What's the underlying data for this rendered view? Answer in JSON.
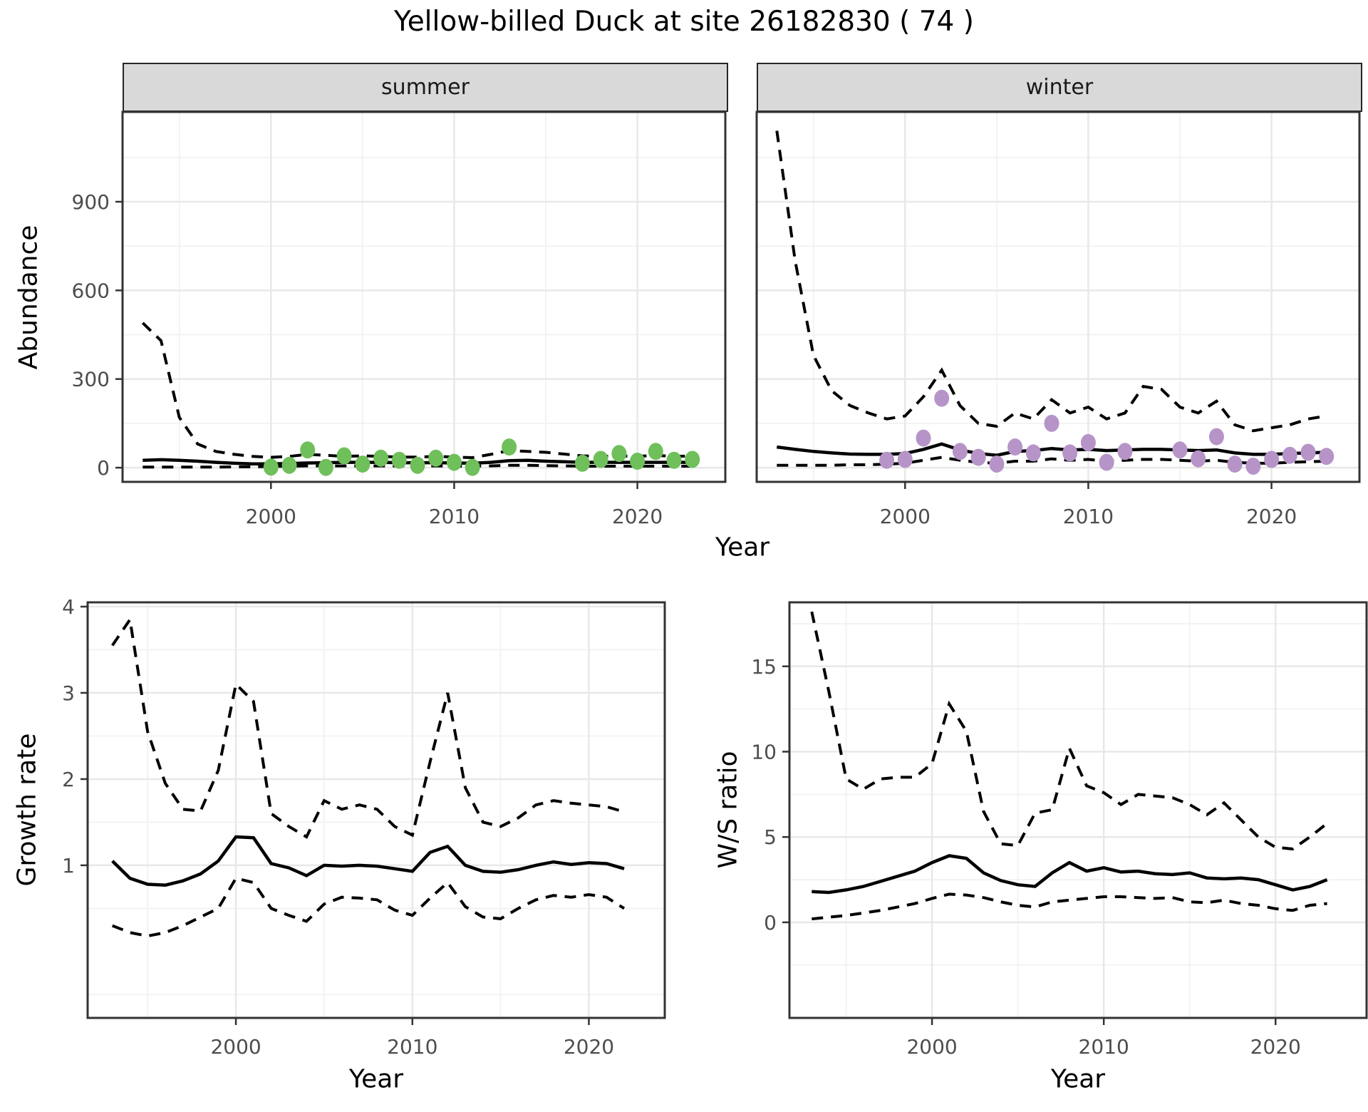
{
  "title": "Yellow-billed Duck at site 26182830 ( 74 )",
  "labels": {
    "abundance": "Abundance",
    "growth_rate": "Growth rate",
    "ws_ratio": "W/S ratio",
    "year": "Year"
  },
  "facets": [
    {
      "label": "summer"
    },
    {
      "label": "winter"
    }
  ],
  "colors": {
    "summer_point": "#6fbf5a",
    "winter_point": "#b694c8",
    "line": "#000000",
    "strip_bg": "#d9d9d9",
    "grid_major": "#e8e8e8",
    "grid_minor": "#f3f3f3",
    "axis_text": "#4d4d4d",
    "panel_border": "#333333"
  },
  "chart_data": [
    {
      "id": "abundance_summer",
      "type": "line",
      "title": "summer facet: modelled abundance with dashed 95% CI and observed counts",
      "xlabel": "Year",
      "ylabel": "Abundance",
      "xlim": [
        1991.9,
        2024.8
      ],
      "ylim": [
        -48,
        1204
      ],
      "xticks": [
        2000,
        2010,
        2020
      ],
      "xminor": [
        1995,
        2005,
        2015
      ],
      "yticks": [
        0,
        300,
        600,
        900
      ],
      "yminor": [
        150,
        450,
        750,
        1050
      ],
      "x": [
        1993,
        1994,
        1995,
        1996,
        1997,
        1998,
        1999,
        2000,
        2001,
        2002,
        2003,
        2004,
        2005,
        2006,
        2007,
        2008,
        2009,
        2010,
        2011,
        2012,
        2013,
        2014,
        2015,
        2016,
        2017,
        2018,
        2019,
        2020,
        2021,
        2022,
        2023
      ],
      "series": [
        {
          "name": "mean",
          "style": "solid",
          "values": [
            25,
            27,
            25,
            22,
            18,
            15,
            13,
            13,
            14,
            16,
            17,
            18,
            18,
            18,
            17,
            17,
            17,
            16,
            15,
            18,
            24,
            25,
            22,
            20,
            18,
            18,
            18,
            18,
            18,
            18,
            18
          ]
        },
        {
          "name": "upper95",
          "style": "dashed",
          "values": [
            490,
            430,
            170,
            80,
            55,
            45,
            38,
            35,
            38,
            45,
            42,
            38,
            40,
            38,
            36,
            36,
            38,
            36,
            34,
            45,
            58,
            55,
            52,
            46,
            40,
            38,
            40,
            38,
            42,
            38,
            40
          ]
        },
        {
          "name": "lower95",
          "style": "dashed",
          "values": [
            2,
            2,
            2,
            2,
            2,
            3,
            3,
            4,
            5,
            6,
            6,
            6,
            6,
            6,
            6,
            6,
            6,
            5,
            5,
            6,
            8,
            8,
            7,
            6,
            5,
            5,
            5,
            5,
            5,
            5,
            5
          ]
        }
      ],
      "points": {
        "color_key": "summer_point",
        "x": [
          2000,
          2001,
          2002,
          2003,
          2004,
          2005,
          2006,
          2007,
          2008,
          2009,
          2010,
          2011,
          2013,
          2017,
          2018,
          2019,
          2020,
          2021,
          2022,
          2023
        ],
        "y": [
          2,
          8,
          60,
          1,
          40,
          12,
          32,
          25,
          8,
          32,
          18,
          1,
          70,
          15,
          28,
          48,
          22,
          55,
          25,
          28
        ]
      }
    },
    {
      "id": "abundance_winter",
      "type": "line",
      "title": "winter facet: modelled abundance with dashed 95% CI and observed counts",
      "xlabel": "Year",
      "ylabel": "Abundance",
      "xlim": [
        1991.9,
        2024.8
      ],
      "ylim": [
        -48,
        1204
      ],
      "xticks": [
        2000,
        2010,
        2020
      ],
      "xminor": [
        1995,
        2005,
        2015
      ],
      "yticks": [
        0,
        300,
        600,
        900
      ],
      "yminor": [
        150,
        450,
        750,
        1050
      ],
      "x": [
        1993,
        1994,
        1995,
        1996,
        1997,
        1998,
        1999,
        2000,
        2001,
        2002,
        2003,
        2004,
        2005,
        2006,
        2007,
        2008,
        2009,
        2010,
        2011,
        2012,
        2013,
        2014,
        2015,
        2016,
        2017,
        2018,
        2019,
        2020,
        2021,
        2022,
        2023
      ],
      "series": [
        {
          "name": "mean",
          "style": "solid",
          "values": [
            70,
            62,
            55,
            50,
            46,
            45,
            45,
            48,
            62,
            80,
            60,
            48,
            42,
            55,
            58,
            65,
            60,
            62,
            58,
            60,
            62,
            62,
            60,
            58,
            60,
            50,
            45,
            45,
            48,
            50,
            52
          ]
        },
        {
          "name": "upper95",
          "style": "dashed",
          "values": [
            1140,
            700,
            380,
            260,
            210,
            185,
            165,
            175,
            240,
            330,
            210,
            150,
            140,
            185,
            165,
            230,
            185,
            205,
            165,
            185,
            275,
            265,
            205,
            185,
            225,
            145,
            125,
            135,
            145,
            165,
            175
          ]
        },
        {
          "name": "lower95",
          "style": "dashed",
          "values": [
            8,
            8,
            8,
            8,
            10,
            10,
            12,
            15,
            25,
            35,
            25,
            18,
            15,
            22,
            22,
            30,
            25,
            28,
            22,
            25,
            28,
            28,
            25,
            22,
            25,
            18,
            15,
            15,
            18,
            20,
            22
          ]
        }
      ],
      "points": {
        "color_key": "winter_point",
        "x": [
          1999,
          2000,
          2001,
          2002,
          2003,
          2004,
          2005,
          2006,
          2007,
          2008,
          2009,
          2010,
          2011,
          2012,
          2015,
          2016,
          2017,
          2018,
          2019,
          2020,
          2021,
          2022,
          2023
        ],
        "y": [
          25,
          28,
          100,
          235,
          55,
          35,
          12,
          70,
          50,
          150,
          50,
          85,
          18,
          55,
          60,
          30,
          105,
          12,
          5,
          28,
          42,
          52,
          38
        ]
      }
    },
    {
      "id": "growth",
      "type": "line",
      "title": "Growth rate with dashed 95% CI",
      "xlabel": "Year",
      "ylabel": "Growth rate",
      "xlim": [
        1991.6,
        2024.3
      ],
      "ylim": [
        -0.77,
        4.05
      ],
      "xticks": [
        2000,
        2010,
        2020
      ],
      "xminor": [
        1995,
        2005,
        2015
      ],
      "yticks": [
        1,
        2,
        3,
        4
      ],
      "yminor": [
        -0.5,
        0.5,
        1.5,
        2.5,
        3.5
      ],
      "x": [
        1993,
        1994,
        1995,
        1996,
        1997,
        1998,
        1999,
        2000,
        2001,
        2002,
        2003,
        2004,
        2005,
        2006,
        2007,
        2008,
        2009,
        2010,
        2011,
        2012,
        2013,
        2014,
        2015,
        2016,
        2017,
        2018,
        2019,
        2020,
        2021,
        2022
      ],
      "series": [
        {
          "name": "mean",
          "style": "solid",
          "values": [
            1.05,
            0.85,
            0.78,
            0.77,
            0.82,
            0.9,
            1.05,
            1.33,
            1.32,
            1.02,
            0.97,
            0.88,
            1.0,
            0.99,
            1.0,
            0.99,
            0.96,
            0.93,
            1.15,
            1.22,
            1.0,
            0.93,
            0.92,
            0.95,
            1.0,
            1.04,
            1.01,
            1.03,
            1.02,
            0.96
          ]
        },
        {
          "name": "upper95",
          "style": "dashed",
          "values": [
            3.55,
            3.85,
            2.55,
            1.95,
            1.65,
            1.63,
            2.1,
            3.1,
            2.9,
            1.6,
            1.45,
            1.33,
            1.75,
            1.65,
            1.7,
            1.65,
            1.45,
            1.35,
            2.2,
            3.0,
            1.9,
            1.5,
            1.45,
            1.55,
            1.7,
            1.75,
            1.72,
            1.7,
            1.68,
            1.62
          ]
        },
        {
          "name": "lower95",
          "style": "dashed",
          "values": [
            0.3,
            0.22,
            0.18,
            0.22,
            0.3,
            0.4,
            0.5,
            0.85,
            0.8,
            0.5,
            0.42,
            0.35,
            0.55,
            0.63,
            0.62,
            0.6,
            0.48,
            0.42,
            0.62,
            0.8,
            0.52,
            0.4,
            0.38,
            0.5,
            0.6,
            0.65,
            0.63,
            0.66,
            0.63,
            0.5
          ]
        }
      ],
      "points": null
    },
    {
      "id": "ws",
      "type": "line",
      "title": "Winter/Summer ratio with dashed 95% CI",
      "xlabel": "Year",
      "ylabel": "W/S ratio",
      "xlim": [
        1991.7,
        2025.3
      ],
      "ylim": [
        -5.6,
        18.75
      ],
      "xticks": [
        2000,
        2010,
        2020
      ],
      "xminor": [
        1995,
        2005,
        2015
      ],
      "yticks": [
        0,
        5,
        10,
        15
      ],
      "yminor": [
        -2.5,
        2.5,
        7.5,
        12.5,
        17.5
      ],
      "x": [
        1993,
        1994,
        1995,
        1996,
        1997,
        1998,
        1999,
        2000,
        2001,
        2002,
        2003,
        2004,
        2005,
        2006,
        2007,
        2008,
        2009,
        2010,
        2011,
        2012,
        2013,
        2014,
        2015,
        2016,
        2017,
        2018,
        2019,
        2020,
        2021,
        2022,
        2023
      ],
      "series": [
        {
          "name": "mean",
          "style": "solid",
          "values": [
            1.8,
            1.75,
            1.9,
            2.1,
            2.4,
            2.7,
            3.0,
            3.5,
            3.9,
            3.75,
            2.9,
            2.45,
            2.2,
            2.1,
            2.9,
            3.5,
            3.0,
            3.2,
            2.95,
            3.0,
            2.85,
            2.8,
            2.9,
            2.6,
            2.55,
            2.6,
            2.5,
            2.2,
            1.9,
            2.1,
            2.5
          ]
        },
        {
          "name": "upper95",
          "style": "dashed",
          "values": [
            18.2,
            13.5,
            8.4,
            7.8,
            8.4,
            8.5,
            8.5,
            9.3,
            12.8,
            11.2,
            6.5,
            4.6,
            4.5,
            6.4,
            6.6,
            10.2,
            8.0,
            7.6,
            6.9,
            7.5,
            7.4,
            7.3,
            6.9,
            6.3,
            7.0,
            6.0,
            5.0,
            4.4,
            4.3,
            5.0,
            5.8
          ]
        },
        {
          "name": "lower95",
          "style": "dashed",
          "values": [
            0.2,
            0.3,
            0.4,
            0.55,
            0.7,
            0.9,
            1.1,
            1.4,
            1.65,
            1.6,
            1.45,
            1.2,
            1.0,
            0.9,
            1.2,
            1.3,
            1.4,
            1.5,
            1.5,
            1.45,
            1.4,
            1.45,
            1.2,
            1.15,
            1.3,
            1.1,
            1.0,
            0.8,
            0.7,
            1.0,
            1.1
          ]
        }
      ],
      "points": null
    }
  ]
}
